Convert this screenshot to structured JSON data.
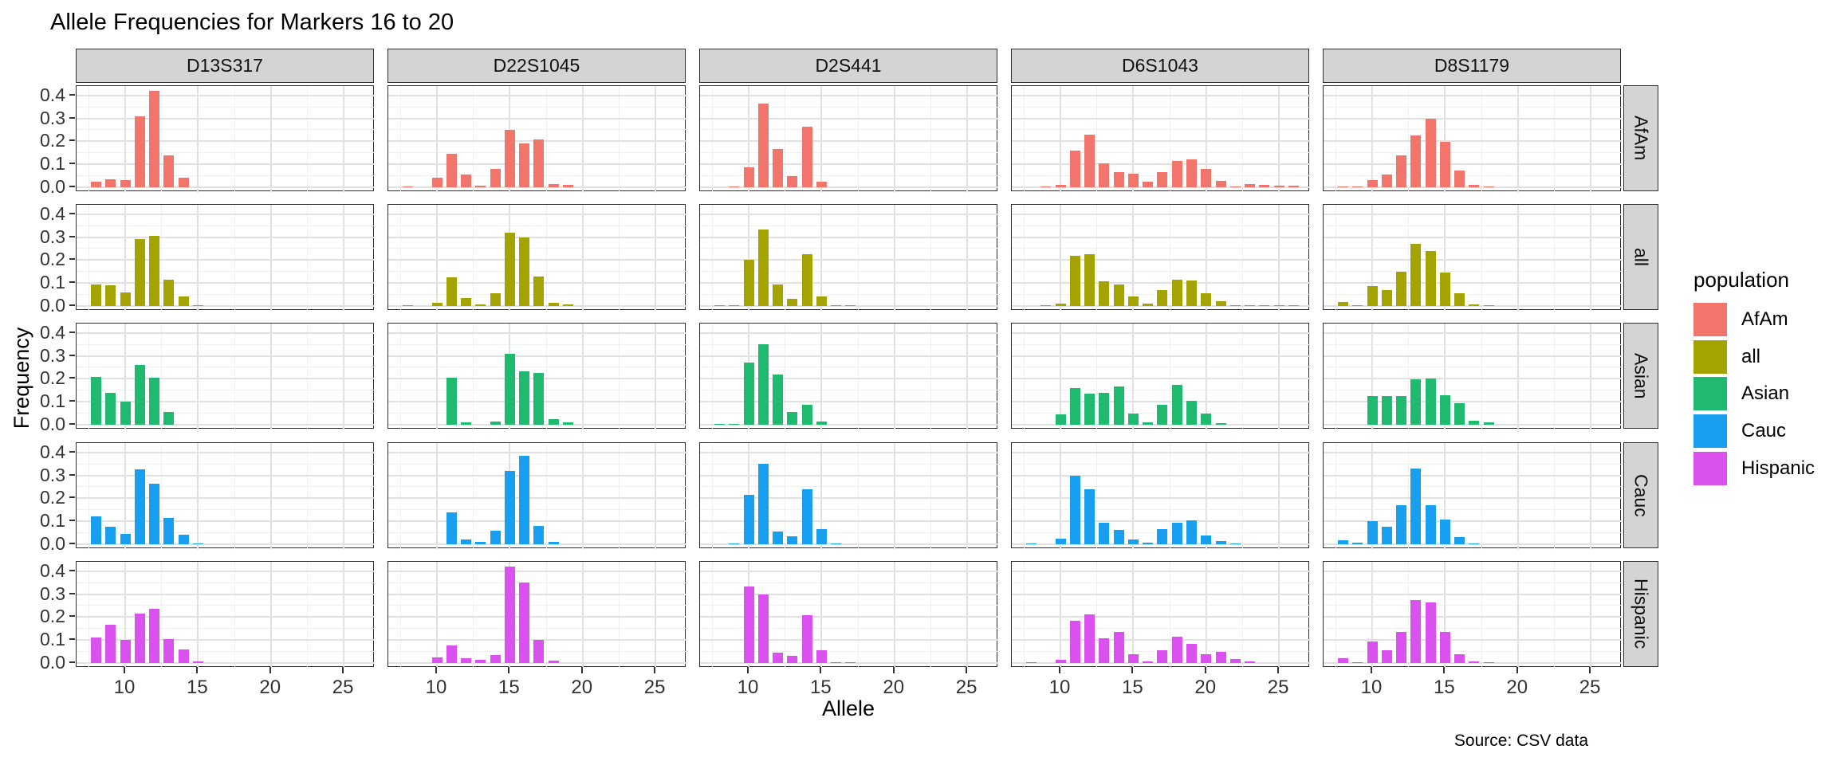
{
  "title": "Allele Frequencies for Markers 16 to 20",
  "caption": "Source: CSV data",
  "axes": {
    "x_label": "Allele",
    "y_label": "Frequency",
    "x_ticks": [
      10,
      15,
      20,
      25
    ],
    "y_ticks": [
      "0.0",
      "0.1",
      "0.2",
      "0.3",
      "0.4"
    ]
  },
  "legend": {
    "title": "population",
    "items": [
      {
        "label": "AfAm",
        "color": "#f2756c"
      },
      {
        "label": "all",
        "color": "#a3a400"
      },
      {
        "label": "Asian",
        "color": "#1fb96f"
      },
      {
        "label": "Cauc",
        "color": "#189ff0"
      },
      {
        "label": "Hispanic",
        "color": "#db51f0"
      }
    ]
  },
  "chart_data": {
    "type": "bar",
    "title": "Allele Frequencies for Markers 16 to 20",
    "xlabel": "Allele",
    "ylabel": "Frequency",
    "facet_columns": [
      "D13S317",
      "D22S1045",
      "D2S441",
      "D6S1043",
      "D8S1179"
    ],
    "facet_rows": [
      "AfAm",
      "all",
      "Asian",
      "Cauc",
      "Hispanic"
    ],
    "x_range": [
      6.66,
      27.13
    ],
    "y_range": [
      -0.021,
      0.441
    ],
    "x_major_gridlines": [
      10,
      15,
      20,
      25
    ],
    "x_minor_gridlines": [
      7.5,
      12.5,
      17.5,
      22.5
    ],
    "y_major_gridlines": [
      0.0,
      0.1,
      0.2,
      0.3,
      0.4
    ],
    "y_minor_gridlines": [
      0.05,
      0.15,
      0.25,
      0.35
    ],
    "series": {
      "D13S317": {
        "AfAm": {
          "8": 0.025,
          "9": 0.034,
          "10": 0.03,
          "11": 0.31,
          "12": 0.42,
          "13": 0.14,
          "14": 0.04
        },
        "all": {
          "8": 0.095,
          "9": 0.09,
          "10": 0.06,
          "11": 0.29,
          "12": 0.305,
          "13": 0.115,
          "14": 0.04,
          "15": 0.004
        },
        "Asian": {
          "8": 0.21,
          "9": 0.14,
          "10": 0.1,
          "11": 0.26,
          "12": 0.205,
          "13": 0.055
        },
        "Cauc": {
          "8": 0.12,
          "9": 0.075,
          "10": 0.045,
          "11": 0.325,
          "12": 0.265,
          "13": 0.115,
          "14": 0.04,
          "15": 0.004
        },
        "Hispanic": {
          "8": 0.11,
          "9": 0.165,
          "10": 0.1,
          "11": 0.215,
          "12": 0.235,
          "13": 0.105,
          "14": 0.06,
          "15": 0.006
        }
      },
      "D22S1045": {
        "AfAm": {
          "8": 0.005,
          "10": 0.04,
          "11": 0.145,
          "12": 0.055,
          "13": 0.006,
          "14": 0.08,
          "15": 0.25,
          "16": 0.19,
          "17": 0.21,
          "18": 0.015,
          "19": 0.01
        },
        "all": {
          "8": 0.004,
          "10": 0.015,
          "11": 0.125,
          "12": 0.035,
          "13": 0.006,
          "14": 0.055,
          "15": 0.32,
          "16": 0.3,
          "17": 0.13,
          "18": 0.015,
          "19": 0.006
        },
        "Asian": {
          "11": 0.205,
          "12": 0.012,
          "14": 0.014,
          "15": 0.31,
          "16": 0.233,
          "17": 0.226,
          "18": 0.025,
          "19": 0.012
        },
        "Cauc": {
          "11": 0.14,
          "12": 0.02,
          "13": 0.01,
          "14": 0.06,
          "15": 0.32,
          "16": 0.385,
          "17": 0.08,
          "18": 0.012
        },
        "Hispanic": {
          "10": 0.025,
          "11": 0.075,
          "12": 0.02,
          "13": 0.015,
          "14": 0.035,
          "15": 0.42,
          "16": 0.35,
          "17": 0.1,
          "18": 0.012
        }
      },
      "D2S441": {
        "AfAm": {
          "9": 0.004,
          "10": 0.085,
          "11": 0.365,
          "12": 0.165,
          "13": 0.05,
          "14": 0.265,
          "15": 0.025
        },
        "all": {
          "8": 0.003,
          "9": 0.004,
          "10": 0.2,
          "11": 0.335,
          "12": 0.095,
          "13": 0.03,
          "14": 0.225,
          "15": 0.04,
          "16": 0.005,
          "17": 0.003
        },
        "Asian": {
          "8": 0.005,
          "9": 0.005,
          "10": 0.27,
          "11": 0.35,
          "12": 0.22,
          "13": 0.055,
          "14": 0.085,
          "15": 0.015
        },
        "Cauc": {
          "9": 0.004,
          "10": 0.215,
          "11": 0.35,
          "12": 0.055,
          "13": 0.035,
          "14": 0.24,
          "15": 0.065,
          "16": 0.004
        },
        "Hispanic": {
          "10": 0.335,
          "11": 0.3,
          "12": 0.045,
          "13": 0.03,
          "14": 0.21,
          "15": 0.055,
          "16": 0.004,
          "17": 0.004
        }
      },
      "D6S1043": {
        "AfAm": {
          "9": 0.005,
          "10": 0.012,
          "11": 0.16,
          "12": 0.23,
          "13": 0.105,
          "14": 0.065,
          "15": 0.06,
          "16": 0.025,
          "17": 0.065,
          "18": 0.115,
          "19": 0.12,
          "20": 0.08,
          "21": 0.028,
          "22": 0.005,
          "23": 0.014,
          "24": 0.009,
          "25": 0.006,
          "26": 0.006
        },
        "all": {
          "9": 0.003,
          "10": 0.012,
          "11": 0.218,
          "12": 0.227,
          "13": 0.107,
          "14": 0.095,
          "15": 0.043,
          "16": 0.012,
          "17": 0.07,
          "18": 0.115,
          "19": 0.11,
          "20": 0.057,
          "21": 0.02,
          "22": 0.004,
          "23": 0.004,
          "24": 0.003,
          "25": 0.003,
          "26": 0.002
        },
        "Asian": {
          "10": 0.046,
          "11": 0.16,
          "12": 0.134,
          "13": 0.138,
          "14": 0.167,
          "15": 0.048,
          "16": 0.01,
          "17": 0.086,
          "18": 0.172,
          "19": 0.103,
          "20": 0.049,
          "21": 0.008
        },
        "Cauc": {
          "8": 0.004,
          "10": 0.025,
          "11": 0.3,
          "12": 0.24,
          "13": 0.095,
          "14": 0.064,
          "15": 0.02,
          "16": 0.008,
          "17": 0.067,
          "18": 0.095,
          "19": 0.103,
          "20": 0.038,
          "21": 0.015,
          "22": 0.005
        },
        "Hispanic": {
          "8": 0.004,
          "10": 0.015,
          "11": 0.184,
          "12": 0.213,
          "13": 0.107,
          "14": 0.134,
          "15": 0.038,
          "16": 0.008,
          "17": 0.054,
          "18": 0.113,
          "19": 0.083,
          "20": 0.038,
          "21": 0.049,
          "22": 0.018,
          "23": 0.006
        }
      },
      "D8S1179": {
        "AfAm": {
          "8": 0.005,
          "9": 0.005,
          "10": 0.03,
          "11": 0.055,
          "12": 0.138,
          "13": 0.224,
          "14": 0.3,
          "15": 0.198,
          "16": 0.072,
          "17": 0.01,
          "18": 0.005
        },
        "all": {
          "8": 0.018,
          "9": 0.004,
          "10": 0.086,
          "11": 0.071,
          "12": 0.15,
          "13": 0.27,
          "14": 0.238,
          "15": 0.146,
          "16": 0.054,
          "17": 0.007,
          "18": 0.004
        },
        "Asian": {
          "10": 0.124,
          "11": 0.124,
          "12": 0.124,
          "13": 0.199,
          "14": 0.2,
          "15": 0.129,
          "16": 0.092,
          "17": 0.018,
          "18": 0.012
        },
        "Cauc": {
          "8": 0.018,
          "9": 0.006,
          "10": 0.1,
          "11": 0.078,
          "12": 0.17,
          "13": 0.33,
          "14": 0.17,
          "15": 0.106,
          "16": 0.032,
          "17": 0.004
        },
        "Hispanic": {
          "8": 0.022,
          "9": 0.005,
          "10": 0.095,
          "11": 0.057,
          "12": 0.136,
          "13": 0.276,
          "14": 0.264,
          "15": 0.136,
          "16": 0.038,
          "17": 0.007,
          "18": 0.004
        }
      }
    }
  }
}
